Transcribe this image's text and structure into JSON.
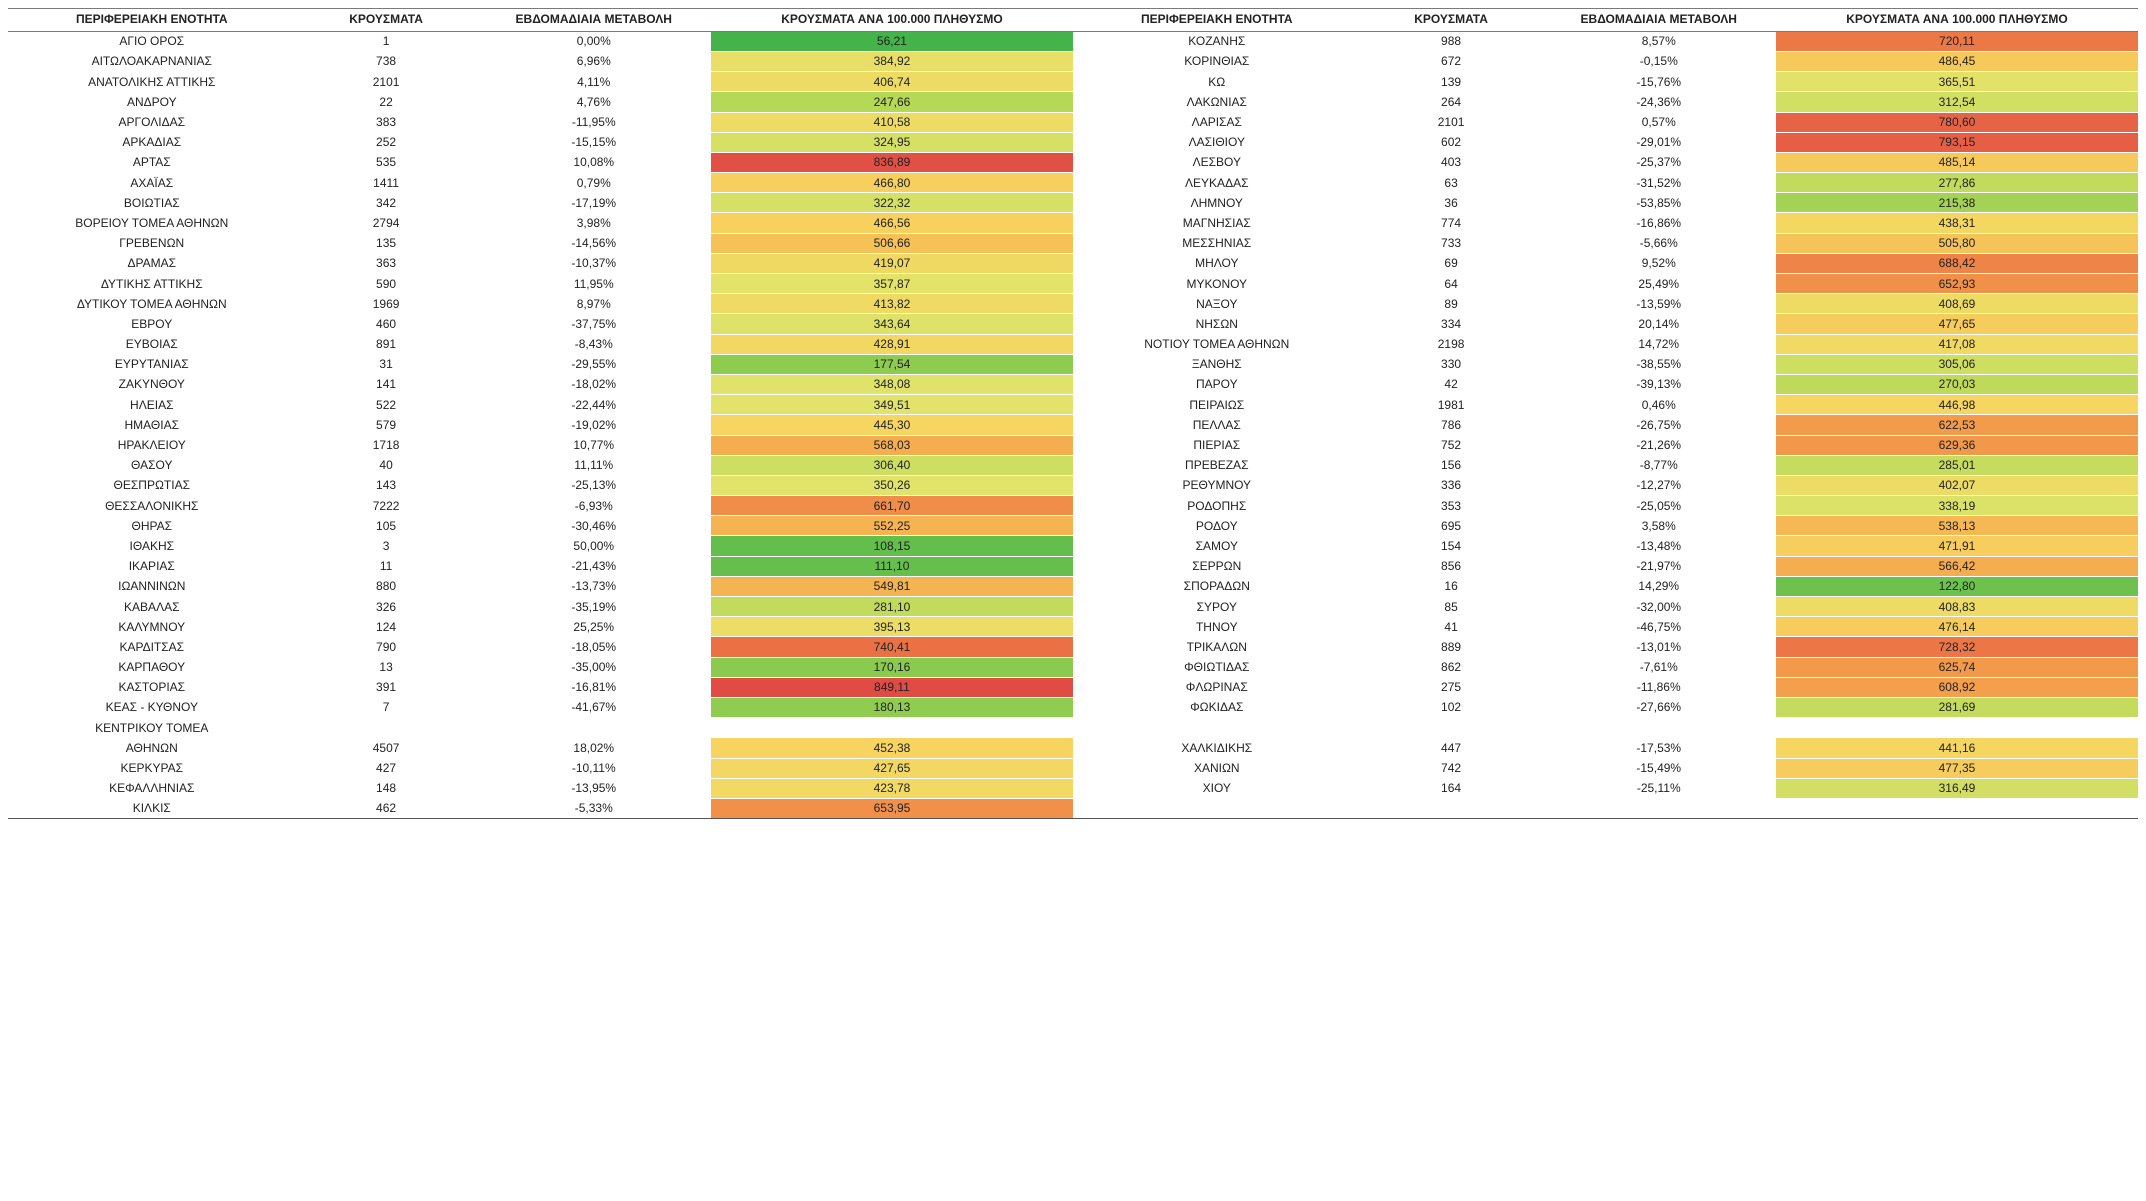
{
  "headers": {
    "region": "ΠΕΡΙΦΕΡΕΙΑΚΗ ΕΝΟΤΗΤΑ",
    "cases": "ΚΡΟΥΣΜΑΤΑ",
    "weekly": "ΕΒΔΟΜΑΔΙΑΙΑ ΜΕΤΑΒΟΛΗ",
    "per100k": "ΚΡΟΥΣΜΑΤΑ ΑΝΑ 100.000 ΠΛΗΘΥΣΜΟ",
    "region2": "ΠΕΡΙΦΕΡΕΙΑΚΗ ΕΝΟΤΗΤΑ"
  },
  "heat": {
    "min": 50,
    "max": 850,
    "stops": [
      {
        "v": 50,
        "c": "#3fb24a"
      },
      {
        "v": 150,
        "c": "#7fc74d"
      },
      {
        "v": 250,
        "c": "#b6d857"
      },
      {
        "v": 350,
        "c": "#e1e36a"
      },
      {
        "v": 450,
        "c": "#f7d560"
      },
      {
        "v": 550,
        "c": "#f5b452"
      },
      {
        "v": 650,
        "c": "#f19148"
      },
      {
        "v": 750,
        "c": "#ea6e45"
      },
      {
        "v": 850,
        "c": "#e04b44"
      }
    ]
  },
  "left": [
    {
      "region": "ΑΓΙΟ ΟΡΟΣ",
      "cases": "1",
      "weekly": "0,00%",
      "per100k": "56,21"
    },
    {
      "region": "ΑΙΤΩΛΟΑΚΑΡΝΑΝΙΑΣ",
      "cases": "738",
      "weekly": "6,96%",
      "per100k": "384,92"
    },
    {
      "region": "ΑΝΑΤΟΛΙΚΗΣ ΑΤΤΙΚΗΣ",
      "cases": "2101",
      "weekly": "4,11%",
      "per100k": "406,74"
    },
    {
      "region": "ΑΝΔΡΟΥ",
      "cases": "22",
      "weekly": "4,76%",
      "per100k": "247,66"
    },
    {
      "region": "ΑΡΓΟΛΙΔΑΣ",
      "cases": "383",
      "weekly": "-11,95%",
      "per100k": "410,58"
    },
    {
      "region": "ΑΡΚΑΔΙΑΣ",
      "cases": "252",
      "weekly": "-15,15%",
      "per100k": "324,95"
    },
    {
      "region": "ΑΡΤΑΣ",
      "cases": "535",
      "weekly": "10,08%",
      "per100k": "836,89"
    },
    {
      "region": "ΑΧΑΪΑΣ",
      "cases": "1411",
      "weekly": "0,79%",
      "per100k": "466,80"
    },
    {
      "region": "ΒΟΙΩΤΙΑΣ",
      "cases": "342",
      "weekly": "-17,19%",
      "per100k": "322,32"
    },
    {
      "region": "ΒΟΡΕΙΟΥ ΤΟΜΕΑ ΑΘΗΝΩΝ",
      "cases": "2794",
      "weekly": "3,98%",
      "per100k": "466,56"
    },
    {
      "region": "ΓΡΕΒΕΝΩΝ",
      "cases": "135",
      "weekly": "-14,56%",
      "per100k": "506,66"
    },
    {
      "region": "ΔΡΑΜΑΣ",
      "cases": "363",
      "weekly": "-10,37%",
      "per100k": "419,07"
    },
    {
      "region": "ΔΥΤΙΚΗΣ ΑΤΤΙΚΗΣ",
      "cases": "590",
      "weekly": "11,95%",
      "per100k": "357,87"
    },
    {
      "region": "ΔΥΤΙΚΟΥ ΤΟΜΕΑ ΑΘΗΝΩΝ",
      "cases": "1969",
      "weekly": "8,97%",
      "per100k": "413,82"
    },
    {
      "region": "ΕΒΡΟΥ",
      "cases": "460",
      "weekly": "-37,75%",
      "per100k": "343,64"
    },
    {
      "region": "ΕΥΒΟΙΑΣ",
      "cases": "891",
      "weekly": "-8,43%",
      "per100k": "428,91"
    },
    {
      "region": "ΕΥΡΥΤΑΝΙΑΣ",
      "cases": "31",
      "weekly": "-29,55%",
      "per100k": "177,54"
    },
    {
      "region": "ΖΑΚΥΝΘΟΥ",
      "cases": "141",
      "weekly": "-18,02%",
      "per100k": "348,08"
    },
    {
      "region": "ΗΛΕΙΑΣ",
      "cases": "522",
      "weekly": "-22,44%",
      "per100k": "349,51"
    },
    {
      "region": "ΗΜΑΘΙΑΣ",
      "cases": "579",
      "weekly": "-19,02%",
      "per100k": "445,30"
    },
    {
      "region": "ΗΡΑΚΛΕΙΟΥ",
      "cases": "1718",
      "weekly": "10,77%",
      "per100k": "568,03"
    },
    {
      "region": "ΘΑΣΟΥ",
      "cases": "40",
      "weekly": "11,11%",
      "per100k": "306,40"
    },
    {
      "region": "ΘΕΣΠΡΩΤΙΑΣ",
      "cases": "143",
      "weekly": "-25,13%",
      "per100k": "350,26"
    },
    {
      "region": "ΘΕΣΣΑΛΟΝΙΚΗΣ",
      "cases": "7222",
      "weekly": "-6,93%",
      "per100k": "661,70"
    },
    {
      "region": "ΘΗΡΑΣ",
      "cases": "105",
      "weekly": "-30,46%",
      "per100k": "552,25"
    },
    {
      "region": "ΙΘΑΚΗΣ",
      "cases": "3",
      "weekly": "50,00%",
      "per100k": "108,15"
    },
    {
      "region": "ΙΚΑΡΙΑΣ",
      "cases": "11",
      "weekly": "-21,43%",
      "per100k": "111,10"
    },
    {
      "region": "ΙΩΑΝΝΙΝΩΝ",
      "cases": "880",
      "weekly": "-13,73%",
      "per100k": "549,81"
    },
    {
      "region": "ΚΑΒΑΛΑΣ",
      "cases": "326",
      "weekly": "-35,19%",
      "per100k": "281,10"
    },
    {
      "region": "ΚΑΛΥΜΝΟΥ",
      "cases": "124",
      "weekly": "25,25%",
      "per100k": "395,13"
    },
    {
      "region": "ΚΑΡΔΙΤΣΑΣ",
      "cases": "790",
      "weekly": "-18,05%",
      "per100k": "740,41"
    },
    {
      "region": "ΚΑΡΠΑΘΟΥ",
      "cases": "13",
      "weekly": "-35,00%",
      "per100k": "170,16"
    },
    {
      "region": "ΚΑΣΤΟΡΙΑΣ",
      "cases": "391",
      "weekly": "-16,81%",
      "per100k": "849,11"
    },
    {
      "region": "ΚΕΑΣ - ΚΥΘΝΟΥ",
      "cases": "7",
      "weekly": "-41,67%",
      "per100k": "180,13"
    },
    {
      "region": "ΚΕΝΤΡΙΚΟΥ ΤΟΜΕΑ ΑΘΗΝΩΝ",
      "cases": "4507",
      "weekly": "18,02%",
      "per100k": "452,38",
      "split": true
    },
    {
      "region": "ΚΕΡΚΥΡΑΣ",
      "cases": "427",
      "weekly": "-10,11%",
      "per100k": "427,65"
    },
    {
      "region": "ΚΕΦΑΛΛΗΝΙΑΣ",
      "cases": "148",
      "weekly": "-13,95%",
      "per100k": "423,78"
    },
    {
      "region": "ΚΙΛΚΙΣ",
      "cases": "462",
      "weekly": "-5,33%",
      "per100k": "653,95"
    }
  ],
  "right": [
    {
      "region": "ΚΟΖΑΝΗΣ",
      "cases": "988",
      "weekly": "8,57%",
      "per100k": "720,11"
    },
    {
      "region": "ΚΟΡΙΝΘΙΑΣ",
      "cases": "672",
      "weekly": "-0,15%",
      "per100k": "486,45"
    },
    {
      "region": "ΚΩ",
      "cases": "139",
      "weekly": "-15,76%",
      "per100k": "365,51"
    },
    {
      "region": "ΛΑΚΩΝΙΑΣ",
      "cases": "264",
      "weekly": "-24,36%",
      "per100k": "312,54"
    },
    {
      "region": "ΛΑΡΙΣΑΣ",
      "cases": "2101",
      "weekly": "0,57%",
      "per100k": "780,60"
    },
    {
      "region": "ΛΑΣΙΘΙΟΥ",
      "cases": "602",
      "weekly": "-29,01%",
      "per100k": "793,15"
    },
    {
      "region": "ΛΕΣΒΟΥ",
      "cases": "403",
      "weekly": "-25,37%",
      "per100k": "485,14"
    },
    {
      "region": "ΛΕΥΚΑΔΑΣ",
      "cases": "63",
      "weekly": "-31,52%",
      "per100k": "277,86"
    },
    {
      "region": "ΛΗΜΝΟΥ",
      "cases": "36",
      "weekly": "-53,85%",
      "per100k": "215,38"
    },
    {
      "region": "ΜΑΓΝΗΣΙΑΣ",
      "cases": "774",
      "weekly": "-16,86%",
      "per100k": "438,31"
    },
    {
      "region": "ΜΕΣΣΗΝΙΑΣ",
      "cases": "733",
      "weekly": "-5,66%",
      "per100k": "505,80"
    },
    {
      "region": "ΜΗΛΟΥ",
      "cases": "69",
      "weekly": "9,52%",
      "per100k": "688,42"
    },
    {
      "region": "ΜΥΚΟΝΟΥ",
      "cases": "64",
      "weekly": "25,49%",
      "per100k": "652,93"
    },
    {
      "region": "ΝΑΞΟΥ",
      "cases": "89",
      "weekly": "-13,59%",
      "per100k": "408,69"
    },
    {
      "region": "ΝΗΣΩΝ",
      "cases": "334",
      "weekly": "20,14%",
      "per100k": "477,65"
    },
    {
      "region": "ΝΟΤΙΟΥ ΤΟΜΕΑ ΑΘΗΝΩΝ",
      "cases": "2198",
      "weekly": "14,72%",
      "per100k": "417,08"
    },
    {
      "region": "ΞΑΝΘΗΣ",
      "cases": "330",
      "weekly": "-38,55%",
      "per100k": "305,06"
    },
    {
      "region": "ΠΑΡΟΥ",
      "cases": "42",
      "weekly": "-39,13%",
      "per100k": "270,03"
    },
    {
      "region": "ΠΕΙΡΑΙΩΣ",
      "cases": "1981",
      "weekly": "0,46%",
      "per100k": "446,98"
    },
    {
      "region": "ΠΕΛΛΑΣ",
      "cases": "786",
      "weekly": "-26,75%",
      "per100k": "622,53"
    },
    {
      "region": "ΠΙΕΡΙΑΣ",
      "cases": "752",
      "weekly": "-21,26%",
      "per100k": "629,36"
    },
    {
      "region": "ΠΡΕΒΕΖΑΣ",
      "cases": "156",
      "weekly": "-8,77%",
      "per100k": "285,01"
    },
    {
      "region": "ΡΕΘΥΜΝΟΥ",
      "cases": "336",
      "weekly": "-12,27%",
      "per100k": "402,07"
    },
    {
      "region": "ΡΟΔΟΠΗΣ",
      "cases": "353",
      "weekly": "-25,05%",
      "per100k": "338,19"
    },
    {
      "region": "ΡΟΔΟΥ",
      "cases": "695",
      "weekly": "3,58%",
      "per100k": "538,13"
    },
    {
      "region": "ΣΑΜΟΥ",
      "cases": "154",
      "weekly": "-13,48%",
      "per100k": "471,91"
    },
    {
      "region": "ΣΕΡΡΩΝ",
      "cases": "856",
      "weekly": "-21,97%",
      "per100k": "566,42"
    },
    {
      "region": "ΣΠΟΡΑΔΩΝ",
      "cases": "16",
      "weekly": "14,29%",
      "per100k": "122,80"
    },
    {
      "region": "ΣΥΡΟΥ",
      "cases": "85",
      "weekly": "-32,00%",
      "per100k": "408,83"
    },
    {
      "region": "ΤΗΝΟΥ",
      "cases": "41",
      "weekly": "-46,75%",
      "per100k": "476,14"
    },
    {
      "region": "ΤΡΙΚΑΛΩΝ",
      "cases": "889",
      "weekly": "-13,01%",
      "per100k": "728,32"
    },
    {
      "region": "ΦΘΙΩΤΙΔΑΣ",
      "cases": "862",
      "weekly": "-7,61%",
      "per100k": "625,74"
    },
    {
      "region": "ΦΛΩΡΙΝΑΣ",
      "cases": "275",
      "weekly": "-11,86%",
      "per100k": "608,92"
    },
    {
      "region": "ΦΩΚΙΔΑΣ",
      "cases": "102",
      "weekly": "-27,66%",
      "per100k": "281,69"
    },
    {
      "blank": true
    },
    {
      "region": "ΧΑΛΚΙΔΙΚΗΣ",
      "cases": "447",
      "weekly": "-17,53%",
      "per100k": "441,16"
    },
    {
      "region": "ΧΑΝΙΩΝ",
      "cases": "742",
      "weekly": "-15,49%",
      "per100k": "477,35"
    },
    {
      "region": "ΧΙΟΥ",
      "cases": "164",
      "weekly": "-25,11%",
      "per100k": "316,49"
    },
    {
      "blank": true
    }
  ]
}
